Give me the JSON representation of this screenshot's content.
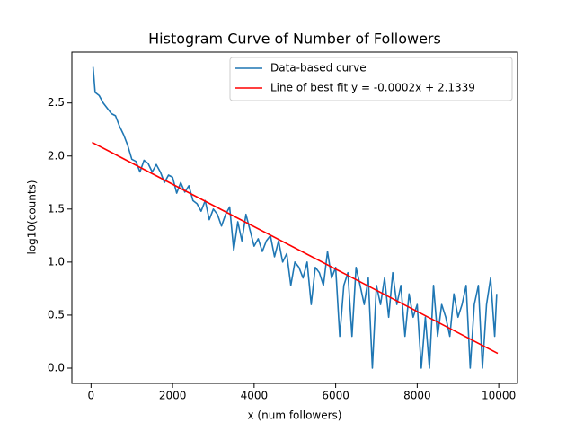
{
  "chart_data": {
    "type": "line",
    "title": "Histogram Curve of Number of Followers",
    "xlabel": "x (num followers)",
    "ylabel": "log10(counts)",
    "xlim": [
      -470,
      10460
    ],
    "ylim": [
      -0.144,
      2.98
    ],
    "xticks": [
      0,
      2000,
      4000,
      6000,
      8000,
      10000
    ],
    "yticks": [
      {
        "value": 0,
        "label": "0.0"
      },
      0.5,
      {
        "value": 1,
        "label": "1.0"
      },
      1.5,
      {
        "value": 2,
        "label": "2.0"
      },
      2.5
    ],
    "legend": "upper right",
    "series": [
      {
        "name": "Data-based curve",
        "color": "#1f77b4",
        "x": [
          50,
          100,
          200,
          300,
          400,
          500,
          600,
          700,
          800,
          900,
          1000,
          1100,
          1200,
          1300,
          1400,
          1500,
          1600,
          1700,
          1800,
          1900,
          2000,
          2100,
          2200,
          2300,
          2400,
          2500,
          2600,
          2700,
          2800,
          2900,
          3000,
          3100,
          3200,
          3300,
          3400,
          3500,
          3600,
          3700,
          3800,
          3900,
          4000,
          4100,
          4200,
          4300,
          4400,
          4500,
          4600,
          4700,
          4800,
          4900,
          5000,
          5100,
          5200,
          5300,
          5400,
          5500,
          5600,
          5700,
          5800,
          5900,
          6000,
          6100,
          6200,
          6300,
          6400,
          6500,
          6600,
          6700,
          6800,
          6900,
          7000,
          7100,
          7200,
          7300,
          7400,
          7500,
          7600,
          7700,
          7800,
          7900,
          8000,
          8100,
          8200,
          8300,
          8400,
          8500,
          8600,
          8700,
          8800,
          8900,
          9000,
          9100,
          9200,
          9300,
          9400,
          9500,
          9600,
          9700,
          9800,
          9900,
          9950
        ],
        "values": [
          2.84,
          2.6,
          2.57,
          2.5,
          2.45,
          2.4,
          2.38,
          2.28,
          2.2,
          2.1,
          1.97,
          1.95,
          1.85,
          1.96,
          1.93,
          1.85,
          1.92,
          1.85,
          1.75,
          1.82,
          1.8,
          1.65,
          1.75,
          1.66,
          1.72,
          1.58,
          1.55,
          1.48,
          1.58,
          1.4,
          1.5,
          1.45,
          1.34,
          1.45,
          1.52,
          1.11,
          1.38,
          1.2,
          1.45,
          1.3,
          1.15,
          1.22,
          1.1,
          1.2,
          1.25,
          1.05,
          1.2,
          1.0,
          1.08,
          0.78,
          1.0,
          0.95,
          0.85,
          1.0,
          0.6,
          0.95,
          0.9,
          0.78,
          1.1,
          0.85,
          0.95,
          0.3,
          0.78,
          0.9,
          0.3,
          0.95,
          0.78,
          0.6,
          0.85,
          0.0,
          0.78,
          0.6,
          0.85,
          0.48,
          0.9,
          0.6,
          0.78,
          0.3,
          0.7,
          0.48,
          0.6,
          0.0,
          0.48,
          0.0,
          0.78,
          0.3,
          0.6,
          0.48,
          0.3,
          0.7,
          0.48,
          0.6,
          0.78,
          0.0,
          0.6,
          0.78,
          0.0,
          0.6,
          0.85,
          0.3,
          0.7
        ]
      },
      {
        "name": "Line of best fit y = -0.0002x + 2.1339",
        "color": "#ff0000",
        "x": [
          25,
          9975
        ],
        "values": [
          2.1289,
          0.1389
        ]
      }
    ]
  }
}
